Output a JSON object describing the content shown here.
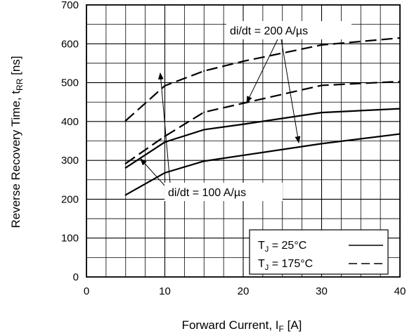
{
  "chart_data": {
    "type": "line",
    "xlabel": "Forward Current, I",
    "xlabel_sub": "F",
    "xlabel_unit": " [A]",
    "ylabel": "Reverse Recovery Time, t",
    "ylabel_sub": "RR",
    "ylabel_unit": " [ns]",
    "xlim": [
      0,
      40
    ],
    "ylim": [
      0,
      700
    ],
    "x_ticks": [
      0,
      10,
      20,
      30,
      40
    ],
    "y_ticks": [
      0,
      100,
      200,
      300,
      400,
      500,
      600,
      700
    ],
    "grid": true,
    "legend_position": "bottom-right",
    "legend": [
      {
        "label_main": "T",
        "label_sub": "J",
        "label_rest": " = 25°C",
        "style": "solid"
      },
      {
        "label_main": "T",
        "label_sub": "J",
        "label_rest": " = 175°C",
        "style": "dashed"
      }
    ],
    "annotations": [
      {
        "text": "di/dt = 200 A/µs"
      },
      {
        "text": "di/dt = 100 A/µs"
      }
    ],
    "series": [
      {
        "temperature": "175°C",
        "didt": "200 A/µs",
        "style": "dashed",
        "x": [
          5,
          10,
          15,
          20,
          30,
          40
        ],
        "y": [
          402,
          492,
          530,
          555,
          597,
          615
        ]
      },
      {
        "temperature": "175°C",
        "didt": "100 A/µs",
        "style": "dashed",
        "x": [
          5,
          10,
          15,
          20,
          30,
          40
        ],
        "y": [
          292,
          362,
          424,
          447,
          493,
          503
        ]
      },
      {
        "temperature": "25°C",
        "didt": "200 A/µs",
        "style": "solid",
        "x": [
          5,
          10,
          15,
          20,
          30,
          40
        ],
        "y": [
          281,
          347,
          379,
          393,
          423,
          433
        ]
      },
      {
        "temperature": "25°C",
        "didt": "100 A/µs",
        "style": "solid",
        "x": [
          5,
          10,
          15,
          20,
          30,
          40
        ],
        "y": [
          211,
          268,
          298,
          313,
          343,
          368
        ]
      }
    ]
  }
}
